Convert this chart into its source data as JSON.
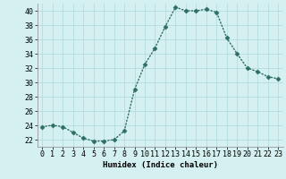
{
  "x": [
    0,
    1,
    2,
    3,
    4,
    5,
    6,
    7,
    8,
    9,
    10,
    11,
    12,
    13,
    14,
    15,
    16,
    17,
    18,
    19,
    20,
    21,
    22,
    23
  ],
  "y": [
    23.8,
    24.0,
    23.8,
    23.0,
    22.2,
    21.8,
    21.8,
    22.0,
    23.2,
    29.0,
    32.5,
    34.8,
    37.8,
    40.5,
    40.0,
    40.0,
    40.2,
    39.8,
    36.2,
    34.0,
    32.0,
    31.5,
    30.8,
    30.5
  ],
  "line_color": "#2e6e62",
  "marker": "D",
  "marker_size": 2.5,
  "bg_color": "#d4f0f0",
  "grid_color": "#b0d8d8",
  "xlabel": "Humidex (Indice chaleur)",
  "ylim": [
    21,
    41
  ],
  "xlim": [
    -0.5,
    23.5
  ],
  "yticks": [
    22,
    24,
    26,
    28,
    30,
    32,
    34,
    36,
    38,
    40
  ],
  "xticks": [
    0,
    1,
    2,
    3,
    4,
    5,
    6,
    7,
    8,
    9,
    10,
    11,
    12,
    13,
    14,
    15,
    16,
    17,
    18,
    19,
    20,
    21,
    22,
    23
  ],
  "label_fontsize": 6.5,
  "tick_fontsize": 6.0,
  "line_width": 1.0,
  "spine_color": "#888888"
}
